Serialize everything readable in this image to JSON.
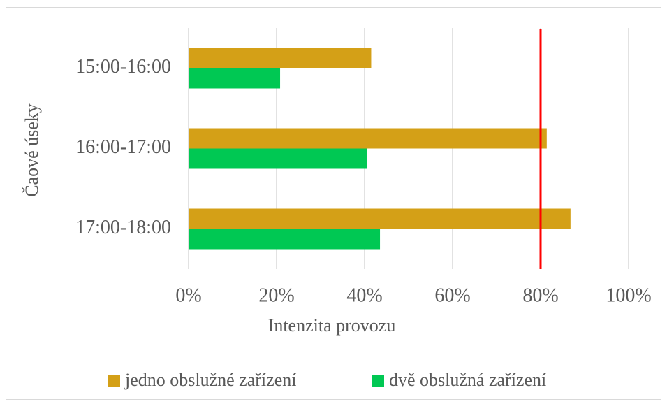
{
  "chart_data": {
    "type": "hbar",
    "categories": [
      "15:00-16:00",
      "16:00-17:00",
      "17:00-18:00"
    ],
    "series": [
      {
        "name": "jedno obslužné zařízení",
        "color": "#d4a017",
        "values": [
          41.5,
          81.4,
          86.8
        ]
      },
      {
        "name": "dvě obslužná zařízení",
        "color": "#00c853",
        "values": [
          20.8,
          40.6,
          43.5
        ]
      }
    ],
    "xlabel": "Intenzita provozu",
    "ylabel": "Čaové úseky",
    "xlim": [
      0,
      100
    ],
    "xticks": [
      {
        "value": 0,
        "label": "0%"
      },
      {
        "value": 20,
        "label": "20%"
      },
      {
        "value": 40,
        "label": "40%"
      },
      {
        "value": 60,
        "label": "60%"
      },
      {
        "value": 80,
        "label": "80%"
      },
      {
        "value": 100,
        "label": "100%"
      }
    ],
    "grid": true,
    "reference_line": 80,
    "reference_line_color": "#ff0000",
    "legend": "bottom"
  }
}
